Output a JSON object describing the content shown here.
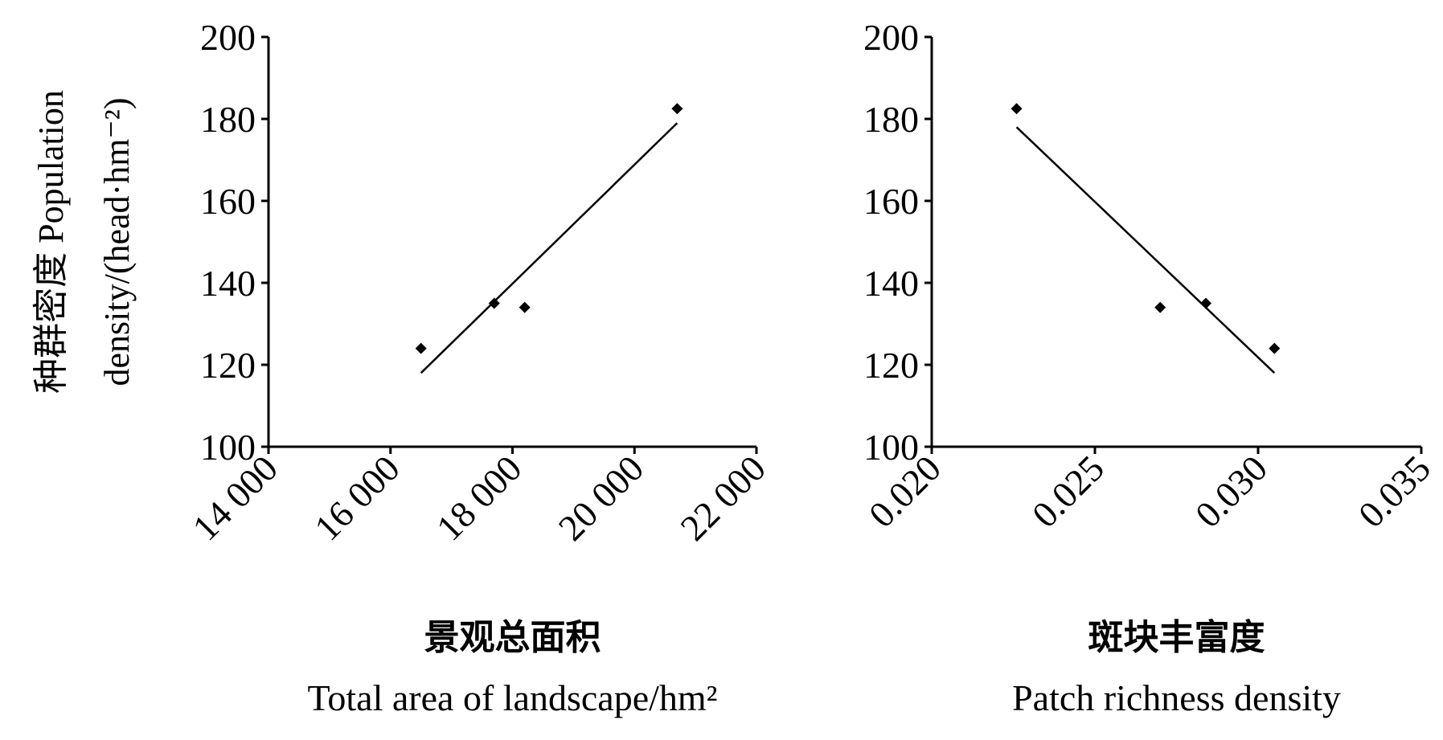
{
  "chart_data": [
    {
      "type": "scatter",
      "ylabel": [
        "种群密度  Population",
        "density/(head·hm⁻²)"
      ],
      "xlabel": [
        "景观总面积",
        "Total area of landscape/hm²"
      ],
      "x": [
        16500,
        17700,
        18200,
        20700
      ],
      "values": [
        124,
        135,
        134,
        182.5
      ],
      "trend": {
        "x": [
          16500,
          20700
        ],
        "y": [
          118,
          179
        ]
      },
      "color": "#000000",
      "xlim": [
        14000,
        22000
      ],
      "xticks": [
        {
          "value": 14000,
          "label": "14 000"
        },
        {
          "value": 16000,
          "label": "16 000"
        },
        {
          "value": 18000,
          "label": "18 000"
        },
        {
          "value": 20000,
          "label": "20 000"
        },
        {
          "value": 22000,
          "label": "22 000"
        }
      ],
      "ylim": [
        100,
        200
      ],
      "yticks": [
        100,
        120,
        140,
        160,
        180,
        200
      ]
    },
    {
      "type": "scatter",
      "xlabel": [
        "斑块丰富度",
        "Patch richness density"
      ],
      "x": [
        0.0226,
        0.027,
        0.0284,
        0.0305
      ],
      "values": [
        182.5,
        134,
        135,
        124
      ],
      "trend": {
        "x": [
          0.0226,
          0.0305
        ],
        "y": [
          178,
          118
        ]
      },
      "color": "#000000",
      "xlim": [
        0.02,
        0.035
      ],
      "xticks": [
        {
          "value": 0.02,
          "label": "0.020"
        },
        {
          "value": 0.025,
          "label": "0.025"
        },
        {
          "value": 0.03,
          "label": "0.030"
        },
        {
          "value": 0.035,
          "label": "0.035"
        }
      ],
      "ylim": [
        100,
        200
      ],
      "yticks": [
        100,
        120,
        140,
        160,
        180,
        200
      ]
    }
  ]
}
